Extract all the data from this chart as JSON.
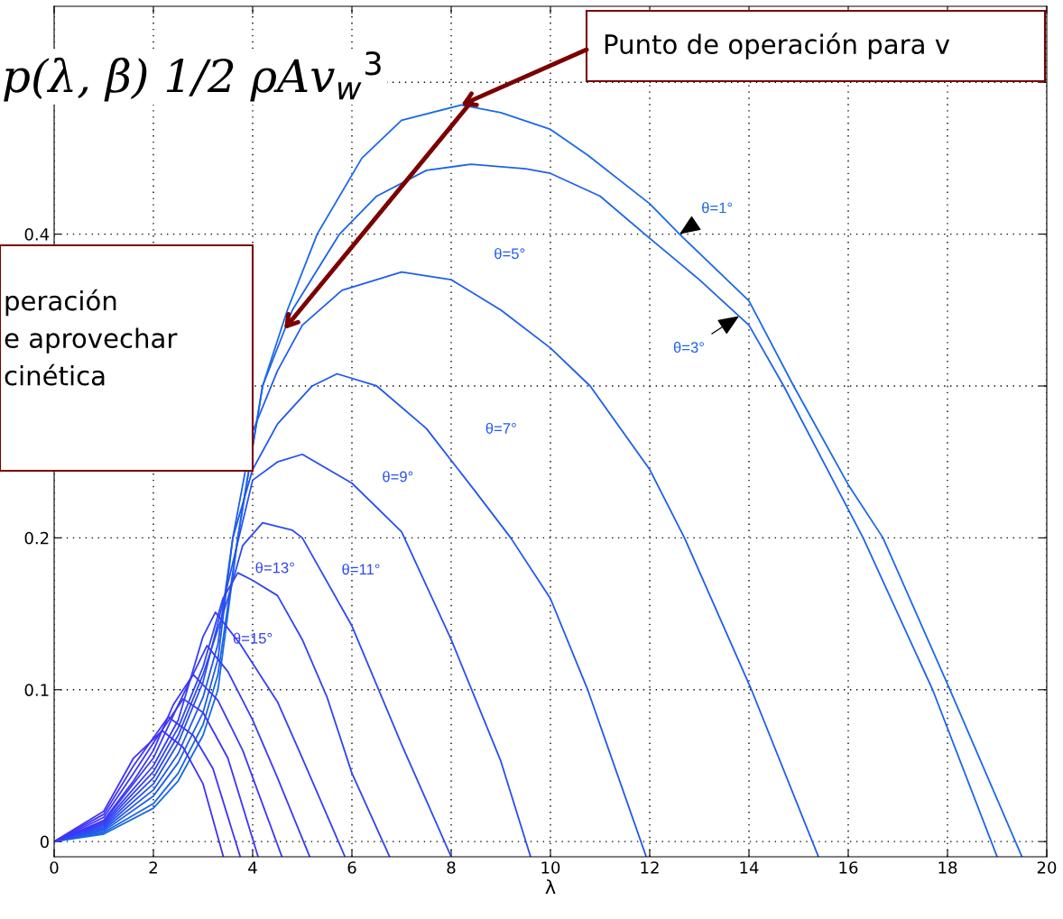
{
  "chart_data": {
    "type": "line",
    "xlabel": "λ",
    "xlim": [
      0,
      20
    ],
    "xticks": [
      0,
      2,
      4,
      6,
      8,
      10,
      12,
      14,
      16,
      18,
      20
    ],
    "ylim": [
      -0.01,
      0.55
    ],
    "yticks": [
      0,
      0.1,
      0.2,
      {
        "value": 0.3,
        "label": null
      },
      0.4,
      {
        "value": 0.5,
        "label": null
      }
    ],
    "grid": true,
    "line_style": "solid",
    "marker": "none",
    "series": [
      {
        "name": "θ=1°",
        "color": "#1a6ae6",
        "x": [
          0,
          1,
          2,
          2.5,
          3,
          3.3,
          3.7,
          4.2,
          4.7,
          5.3,
          6.2,
          7,
          8.2,
          9,
          10,
          10.75,
          12,
          12.6,
          14,
          14.9,
          16,
          16.7,
          18.05,
          19.5
        ],
        "values": [
          0,
          0.005,
          0.022,
          0.04,
          0.07,
          0.1,
          0.2,
          0.3,
          0.35,
          0.4,
          0.45,
          0.475,
          0.485,
          0.48,
          0.469,
          0.452,
          0.42,
          0.4,
          0.356,
          0.3,
          0.235,
          0.2,
          0.1,
          -0.01
        ]
      },
      {
        "name": "θ=3°",
        "color": "#1c64e8",
        "x": [
          0,
          1,
          2,
          2.5,
          3,
          3.3,
          3.7,
          4.2,
          4.8,
          5.75,
          6.5,
          7.5,
          8.4,
          9.5,
          10,
          11,
          11.9,
          13,
          14,
          14.7,
          16.3,
          17.7,
          19.0
        ],
        "values": [
          0,
          0.006,
          0.025,
          0.045,
          0.077,
          0.11,
          0.2,
          0.3,
          0.35,
          0.4,
          0.425,
          0.442,
          0.446,
          0.443,
          0.44,
          0.425,
          0.4,
          0.37,
          0.34,
          0.3,
          0.2,
          0.1,
          -0.01
        ]
      },
      {
        "name": "θ=5°",
        "color": "#1e5eea",
        "x": [
          0,
          1,
          2,
          2.5,
          3,
          3.3,
          3.6,
          4,
          4.5,
          5,
          5.8,
          7,
          8,
          9,
          10,
          10.8,
          12,
          12.7,
          14.05,
          15.4
        ],
        "values": [
          0,
          0.007,
          0.03,
          0.052,
          0.085,
          0.12,
          0.2,
          0.27,
          0.31,
          0.34,
          0.363,
          0.375,
          0.37,
          0.35,
          0.325,
          0.3,
          0.245,
          0.2,
          0.1,
          -0.01
        ]
      },
      {
        "name": "θ=7°",
        "color": "#2058ec",
        "x": [
          0,
          1,
          2,
          2.5,
          3,
          3.3,
          3.6,
          4,
          4.5,
          5.2,
          5.7,
          6.5,
          7.5,
          8.5,
          9.2,
          10,
          10.75,
          11.93
        ],
        "values": [
          0,
          0.008,
          0.034,
          0.058,
          0.095,
          0.13,
          0.2,
          0.245,
          0.275,
          0.3,
          0.308,
          0.3,
          0.272,
          0.23,
          0.2,
          0.16,
          0.1,
          -0.01
        ]
      },
      {
        "name": "θ=9°",
        "color": "#2a50ee",
        "x": [
          0,
          1,
          2,
          2.5,
          3,
          3.5,
          4,
          4.5,
          5,
          6,
          7,
          8,
          9,
          9.6
        ],
        "values": [
          0,
          0.009,
          0.038,
          0.065,
          0.105,
          0.17,
          0.238,
          0.25,
          0.255,
          0.236,
          0.204,
          0.133,
          0.053,
          -0.01
        ]
      },
      {
        "name": "θ=11°",
        "color": "#2e4af0",
        "x": [
          0,
          1,
          2,
          2.5,
          3,
          3.5,
          3.8,
          4.2,
          4.8,
          5,
          6,
          7,
          8
        ],
        "values": [
          0,
          0.01,
          0.042,
          0.07,
          0.11,
          0.16,
          0.195,
          0.21,
          0.205,
          0.2,
          0.142,
          0.064,
          -0.01
        ]
      },
      {
        "name": "θ=13°",
        "color": "#3244f2",
        "x": [
          0,
          1,
          2,
          2.5,
          3,
          3.4,
          3.7,
          4,
          4.5,
          5,
          5.5,
          6,
          6.76
        ],
        "values": [
          0,
          0.011,
          0.046,
          0.075,
          0.115,
          0.16,
          0.177,
          0.172,
          0.162,
          0.133,
          0.095,
          0.045,
          -0.01
        ]
      },
      {
        "name": "θ=15°",
        "color": "#363ef4",
        "x": [
          0,
          1,
          2,
          2.5,
          3,
          3.25,
          3.75,
          4.5,
          5,
          5.86
        ],
        "values": [
          0,
          0.012,
          0.05,
          0.08,
          0.135,
          0.151,
          0.13,
          0.092,
          0.055,
          -0.01
        ]
      },
      {
        "color": "#3a3af5",
        "x": [
          0,
          1,
          2,
          2.5,
          3.08,
          3.5,
          4,
          4.5,
          5.15
        ],
        "values": [
          0,
          0.013,
          0.055,
          0.09,
          0.129,
          0.112,
          0.08,
          0.042,
          -0.01
        ]
      },
      {
        "color": "#3c38f6",
        "x": [
          0,
          1,
          1.6,
          2,
          2.4,
          2.8,
          3.3,
          3.8,
          4.59
        ],
        "values": [
          0,
          0.014,
          0.04,
          0.06,
          0.09,
          0.11,
          0.093,
          0.06,
          -0.01
        ]
      },
      {
        "color": "#3e36f7",
        "x": [
          0,
          1,
          1.6,
          2,
          2.6,
          3,
          3.5,
          4.11
        ],
        "values": [
          0,
          0.016,
          0.045,
          0.065,
          0.094,
          0.085,
          0.055,
          -0.01
        ]
      },
      {
        "color": "#4034f8",
        "x": [
          0,
          1,
          1.6,
          2.3,
          2.8,
          3.2,
          3.75
        ],
        "values": [
          0,
          0.018,
          0.05,
          0.082,
          0.07,
          0.048,
          -0.01
        ]
      },
      {
        "color": "#4232f9",
        "x": [
          0,
          1,
          1.6,
          2.18,
          2.6,
          3,
          3.41
        ],
        "values": [
          0,
          0.02,
          0.055,
          0.073,
          0.062,
          0.038,
          -0.01
        ]
      }
    ],
    "annotations": [
      "p(λ, β) 1/2 ρAv$_{w}$$^{3}$",
      {
        "text": "Punto de operación para v",
        "x": 8.2,
        "y": 0.485
      },
      "peración\ne aprovechar\ncinética"
    ]
  }
}
